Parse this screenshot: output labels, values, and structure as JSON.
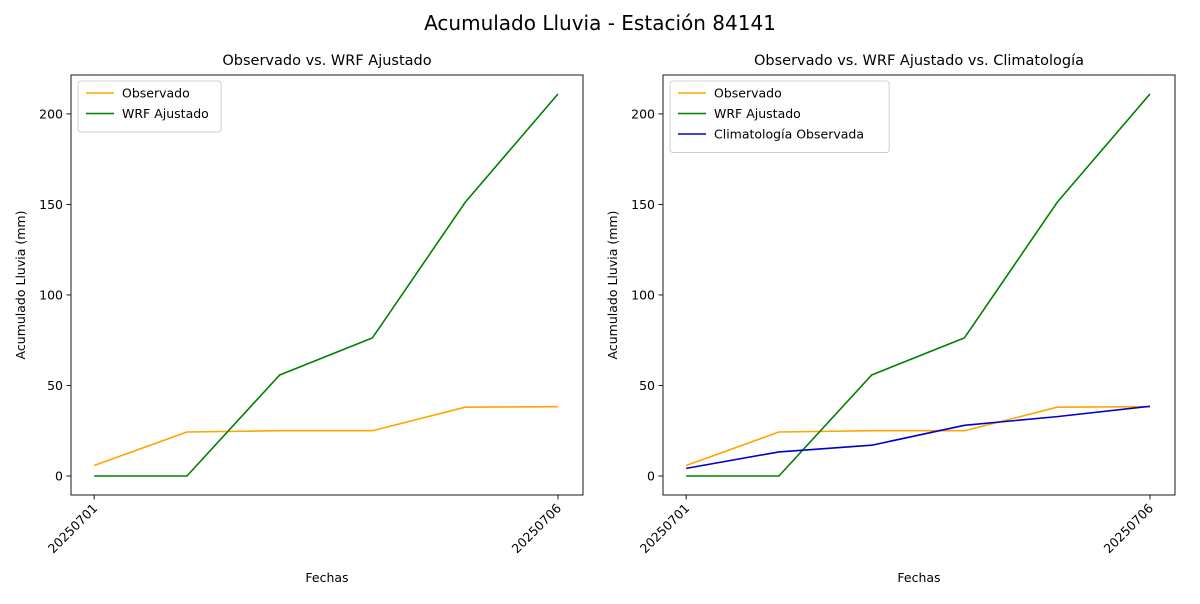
{
  "figure": {
    "suptitle": "Acumulado Lluvia - Estación 84141"
  },
  "chart_data": [
    {
      "type": "line",
      "title": "Observado vs. WRF Ajustado",
      "xlabel": "Fechas",
      "ylabel": "Acumulado Lluvia (mm)",
      "x": [
        0,
        1,
        2,
        3,
        4,
        5
      ],
      "xticks": [
        {
          "x": 0,
          "label": "20250701"
        },
        {
          "x": 5,
          "label": "20250706"
        }
      ],
      "xlim": [
        -0.25,
        5.27
      ],
      "yticks": [
        0,
        50,
        100,
        150,
        200
      ],
      "ylim": [
        -10.5,
        221.5
      ],
      "grid": false,
      "legend": "top-left",
      "series": [
        {
          "name": "Observado",
          "color": "#ffa500",
          "values": [
            5.8,
            24.3,
            25.0,
            25.0,
            38.0,
            38.3
          ]
        },
        {
          "name": "WRF Ajustado",
          "color": "#008000",
          "values": [
            0.0,
            0.0,
            55.8,
            76.3,
            151.2,
            211.0
          ]
        }
      ]
    },
    {
      "type": "line",
      "title": "Observado vs. WRF Ajustado vs. Climatología",
      "xlabel": "Fechas",
      "ylabel": "Acumulado Lluvia (mm)",
      "x": [
        0,
        1,
        2,
        3,
        4,
        5
      ],
      "xticks": [
        {
          "x": 0,
          "label": "20250701"
        },
        {
          "x": 5,
          "label": "20250706"
        }
      ],
      "xlim": [
        -0.25,
        5.27
      ],
      "yticks": [
        0,
        50,
        100,
        150,
        200
      ],
      "ylim": [
        -10.5,
        221.5
      ],
      "grid": false,
      "legend": "top-left",
      "series": [
        {
          "name": "Observado",
          "color": "#ffa500",
          "values": [
            5.8,
            24.3,
            25.0,
            25.0,
            38.0,
            38.3
          ]
        },
        {
          "name": "WRF Ajustado",
          "color": "#008000",
          "values": [
            0.0,
            0.0,
            55.8,
            76.3,
            151.2,
            211.0
          ]
        },
        {
          "name": "Climatología Observada",
          "color": "#0000cd",
          "values": [
            4.2,
            13.3,
            17.0,
            28.0,
            32.8,
            38.5
          ]
        }
      ]
    }
  ]
}
